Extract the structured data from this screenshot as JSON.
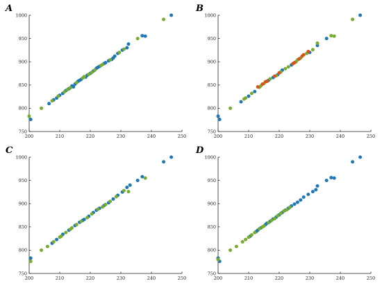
{
  "colors": {
    "blue": "#1f77b4",
    "green": "#77ac30",
    "red": "#d95319",
    "axis": "#262626"
  },
  "chart_data": [
    {
      "type": "scatter",
      "panel_label": "A",
      "xlim": [
        200,
        250
      ],
      "ylim": [
        750,
        1000
      ],
      "xticks": [
        200,
        210,
        220,
        230,
        240,
        250
      ],
      "yticks": [
        750,
        800,
        850,
        900,
        950,
        1000
      ],
      "title": "",
      "xlabel": "",
      "ylabel": "",
      "grid": false,
      "series": [
        {
          "color": "blue",
          "points": [
            [
              246.5,
              1000
            ],
            [
              238,
              955
            ],
            [
              237,
              956
            ],
            [
              232.5,
              938
            ],
            [
              232,
              930
            ],
            [
              230.5,
              925
            ],
            [
              229,
              918
            ],
            [
              228,
              912
            ],
            [
              227,
              905
            ],
            [
              226,
              902
            ],
            [
              224.5,
              896
            ],
            [
              223,
              890
            ],
            [
              222,
              886
            ],
            [
              221,
              880
            ],
            [
              220,
              875
            ],
            [
              219,
              871
            ],
            [
              218.5,
              867
            ],
            [
              217,
              862
            ],
            [
              216,
              858
            ],
            [
              215,
              852
            ],
            [
              214,
              848
            ],
            [
              213,
              842
            ],
            [
              212,
              838
            ],
            [
              211,
              832
            ],
            [
              210,
              828
            ],
            [
              209,
              822
            ],
            [
              208,
              818
            ],
            [
              206.5,
              810
            ],
            [
              200.5,
              776
            ],
            [
              214.5,
              846
            ],
            [
              216.5,
              860
            ],
            [
              222.5,
              888
            ],
            [
              225,
              898
            ],
            [
              227.5,
              908
            ]
          ]
        },
        {
          "color": "green",
          "points": [
            [
              244,
              991
            ],
            [
              235.5,
              950
            ],
            [
              231,
              927
            ],
            [
              229.5,
              920
            ],
            [
              226.5,
              904
            ],
            [
              224,
              894
            ],
            [
              221.5,
              882
            ],
            [
              219.5,
              873
            ],
            [
              217.5,
              865
            ],
            [
              215.5,
              855
            ],
            [
              213.5,
              844
            ],
            [
              211.5,
              835
            ],
            [
              209.5,
              826
            ],
            [
              207.5,
              816
            ],
            [
              204,
              800
            ],
            [
              200,
              783
            ],
            [
              218,
              868
            ],
            [
              220.5,
              877
            ],
            [
              223.5,
              892
            ],
            [
              212.5,
              840
            ]
          ]
        }
      ]
    },
    {
      "type": "scatter",
      "panel_label": "B",
      "xlim": [
        200,
        250
      ],
      "ylim": [
        750,
        1000
      ],
      "xticks": [
        200,
        210,
        220,
        230,
        240,
        250
      ],
      "yticks": [
        750,
        800,
        850,
        900,
        950,
        1000
      ],
      "title": "",
      "xlabel": "",
      "ylabel": "",
      "grid": false,
      "series": [
        {
          "color": "blue",
          "points": [
            [
              246.5,
              1000
            ],
            [
              235.5,
              950
            ],
            [
              232.5,
              935
            ],
            [
              230,
              920
            ],
            [
              221,
              882
            ],
            [
              219.5,
              872
            ],
            [
              218,
              866
            ],
            [
              216.5,
              860
            ],
            [
              212,
              836
            ],
            [
              210,
              826
            ],
            [
              207.5,
              814
            ],
            [
              200.5,
              776
            ],
            [
              200,
              783
            ],
            [
              224,
              893
            ]
          ]
        },
        {
          "color": "green",
          "points": [
            [
              244,
              991
            ],
            [
              238,
              955
            ],
            [
              237,
              956
            ],
            [
              232.5,
              940
            ],
            [
              231,
              926
            ],
            [
              229,
              918
            ],
            [
              227,
              908
            ],
            [
              225.5,
              900
            ],
            [
              223,
              889
            ],
            [
              222,
              885
            ],
            [
              220.5,
              878
            ],
            [
              219,
              870
            ],
            [
              217,
              863
            ],
            [
              215,
              853
            ],
            [
              213.5,
              845
            ],
            [
              211,
              832
            ],
            [
              209,
              822
            ],
            [
              208.5,
              820
            ],
            [
              204,
              800
            ],
            [
              226,
              904
            ],
            [
              214,
              848
            ]
          ]
        },
        {
          "color": "red",
          "points": [
            [
              229.5,
              922
            ],
            [
              228,
              915
            ],
            [
              226.5,
              906
            ],
            [
              225,
              898
            ],
            [
              224.5,
              896
            ],
            [
              220,
              876
            ],
            [
              218.5,
              869
            ],
            [
              215.5,
              857
            ],
            [
              214.5,
              852
            ],
            [
              213,
              846
            ],
            [
              227.5,
              912
            ],
            [
              216,
              858
            ]
          ]
        }
      ]
    },
    {
      "type": "scatter",
      "panel_label": "C",
      "xlim": [
        200,
        250
      ],
      "ylim": [
        750,
        1000
      ],
      "xticks": [
        200,
        210,
        220,
        230,
        240,
        250
      ],
      "yticks": [
        750,
        800,
        850,
        900,
        950,
        1000
      ],
      "title": "",
      "xlabel": "",
      "ylabel": "",
      "grid": false,
      "series": [
        {
          "color": "blue",
          "points": [
            [
              246.5,
              1000
            ],
            [
              244,
              990
            ],
            [
              237,
              958
            ],
            [
              235.5,
              950
            ],
            [
              233,
              940
            ],
            [
              232,
              935
            ],
            [
              230.5,
              925
            ],
            [
              229,
              918
            ],
            [
              227.5,
              910
            ],
            [
              226,
              902
            ],
            [
              224.5,
              896
            ],
            [
              223,
              890
            ],
            [
              221,
              881
            ],
            [
              219.5,
              873
            ],
            [
              218,
              866
            ],
            [
              216.5,
              860
            ],
            [
              215,
              853
            ],
            [
              213,
              843
            ],
            [
              211,
              834
            ],
            [
              209,
              823
            ],
            [
              207.5,
              815
            ],
            [
              200.5,
              783
            ],
            [
              222,
              886
            ],
            [
              217.5,
              864
            ]
          ]
        },
        {
          "color": "green",
          "points": [
            [
              238,
              955
            ],
            [
              232.5,
              926
            ],
            [
              231,
              928
            ],
            [
              228.5,
              915
            ],
            [
              226.5,
              905
            ],
            [
              225,
              898
            ],
            [
              222.5,
              888
            ],
            [
              220.5,
              878
            ],
            [
              219,
              870
            ],
            [
              217,
              862
            ],
            [
              215.5,
              855
            ],
            [
              214,
              848
            ],
            [
              212,
              838
            ],
            [
              210,
              828
            ],
            [
              208,
              818
            ],
            [
              206,
              808
            ],
            [
              204,
              800
            ],
            [
              200.5,
              776
            ],
            [
              224,
              893
            ],
            [
              213.5,
              845
            ],
            [
              210.5,
              830
            ]
          ]
        }
      ]
    },
    {
      "type": "scatter",
      "panel_label": "D",
      "xlim": [
        200,
        250
      ],
      "ylim": [
        750,
        1000
      ],
      "xticks": [
        200,
        210,
        220,
        230,
        240,
        250
      ],
      "yticks": [
        750,
        800,
        850,
        900,
        950,
        1000
      ],
      "title": "",
      "xlabel": "",
      "ylabel": "",
      "grid": false,
      "series": [
        {
          "color": "blue",
          "points": [
            [
              246.5,
              1000
            ],
            [
              244,
              990
            ],
            [
              238,
              955
            ],
            [
              237,
              956
            ],
            [
              235.5,
              950
            ],
            [
              232.5,
              938
            ],
            [
              232,
              930
            ],
            [
              231,
              926
            ],
            [
              229.5,
              920
            ],
            [
              228,
              914
            ],
            [
              227,
              908
            ],
            [
              226,
              903
            ],
            [
              225,
              899
            ],
            [
              224,
              895
            ],
            [
              223,
              890
            ],
            [
              222,
              886
            ],
            [
              221,
              881
            ],
            [
              220,
              876
            ],
            [
              219,
              871
            ],
            [
              218,
              867
            ],
            [
              217,
              862
            ],
            [
              215.5,
              855
            ],
            [
              214,
              848
            ],
            [
              212.5,
              840
            ],
            [
              210.5,
              830
            ],
            [
              200.5,
              776
            ],
            [
              200,
              783
            ],
            [
              216,
              858
            ],
            [
              213,
              843
            ]
          ]
        },
        {
          "color": "green",
          "points": [
            [
              221.5,
              884
            ],
            [
              220.5,
              879
            ],
            [
              219.5,
              874
            ],
            [
              218.5,
              868
            ],
            [
              217.5,
              864
            ],
            [
              216.5,
              859
            ],
            [
              215,
              852
            ],
            [
              214.5,
              850
            ],
            [
              213.5,
              846
            ],
            [
              212,
              838
            ],
            [
              211,
              833
            ],
            [
              210,
              828
            ],
            [
              209,
              823
            ],
            [
              208,
              818
            ],
            [
              206,
              808
            ],
            [
              204,
              800
            ],
            [
              200,
              780
            ],
            [
              223.5,
              892
            ],
            [
              222.5,
              887
            ]
          ]
        }
      ]
    }
  ]
}
